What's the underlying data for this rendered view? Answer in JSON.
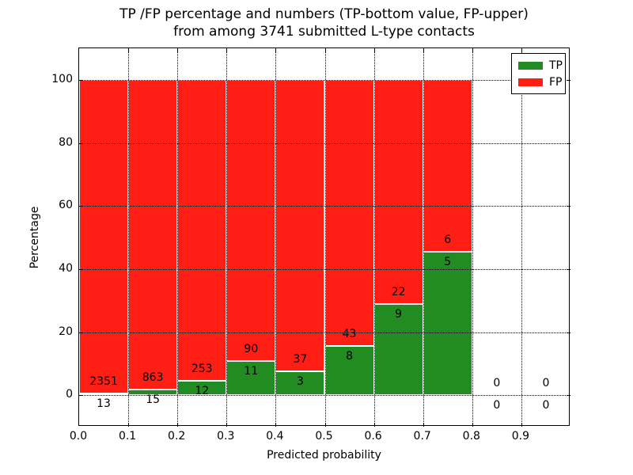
{
  "title": {
    "line1": "TP /FP percentage and numbers (TP-bottom value, FP-upper)",
    "line2": "from among 3741 submitted L-type contacts"
  },
  "axes": {
    "xlabel": "Predicted probability",
    "ylabel": "Percentage",
    "x_tick_labels": [
      "0.0",
      "0.1",
      "0.2",
      "0.3",
      "0.4",
      "0.5",
      "0.6",
      "0.7",
      "0.8",
      "0.9"
    ],
    "y_tick_labels": [
      "0",
      "20",
      "40",
      "60",
      "80",
      "100"
    ],
    "xlim": [
      0.0,
      1.0
    ],
    "ylim": [
      -10,
      110
    ],
    "grid": "dotted"
  },
  "legend": {
    "position": "upper-right",
    "items": [
      {
        "label": "TP",
        "color": "#228b22"
      },
      {
        "label": "FP",
        "color": "#ff1e14"
      }
    ]
  },
  "chart_data": {
    "type": "bar",
    "stacked": true,
    "title": "TP /FP percentage and numbers (TP-bottom value, FP-upper) from among 3741 submitted L-type contacts",
    "xlabel": "Predicted probability",
    "ylabel": "Percentage",
    "total_contacts": 3741,
    "bin_start": [
      0.0,
      0.1,
      0.2,
      0.3,
      0.4,
      0.5,
      0.6,
      0.7,
      0.8,
      0.9
    ],
    "bin_width": 0.1,
    "series": [
      {
        "name": "TP",
        "color": "#228b22",
        "counts": [
          13,
          15,
          12,
          11,
          3,
          8,
          9,
          5,
          0,
          0
        ]
      },
      {
        "name": "FP",
        "color": "#ff1e14",
        "counts": [
          2351,
          863,
          253,
          90,
          37,
          43,
          22,
          6,
          0,
          0
        ]
      }
    ],
    "bar_annotation_note": "FP count printed above TP-bar top, TP count printed below it; stacked bars normalized to 100%",
    "tp_percent": [
      0.55,
      1.71,
      4.53,
      10.89,
      7.5,
      15.69,
      29.03,
      45.45,
      0,
      0
    ],
    "ylim": [
      -10,
      110
    ]
  }
}
